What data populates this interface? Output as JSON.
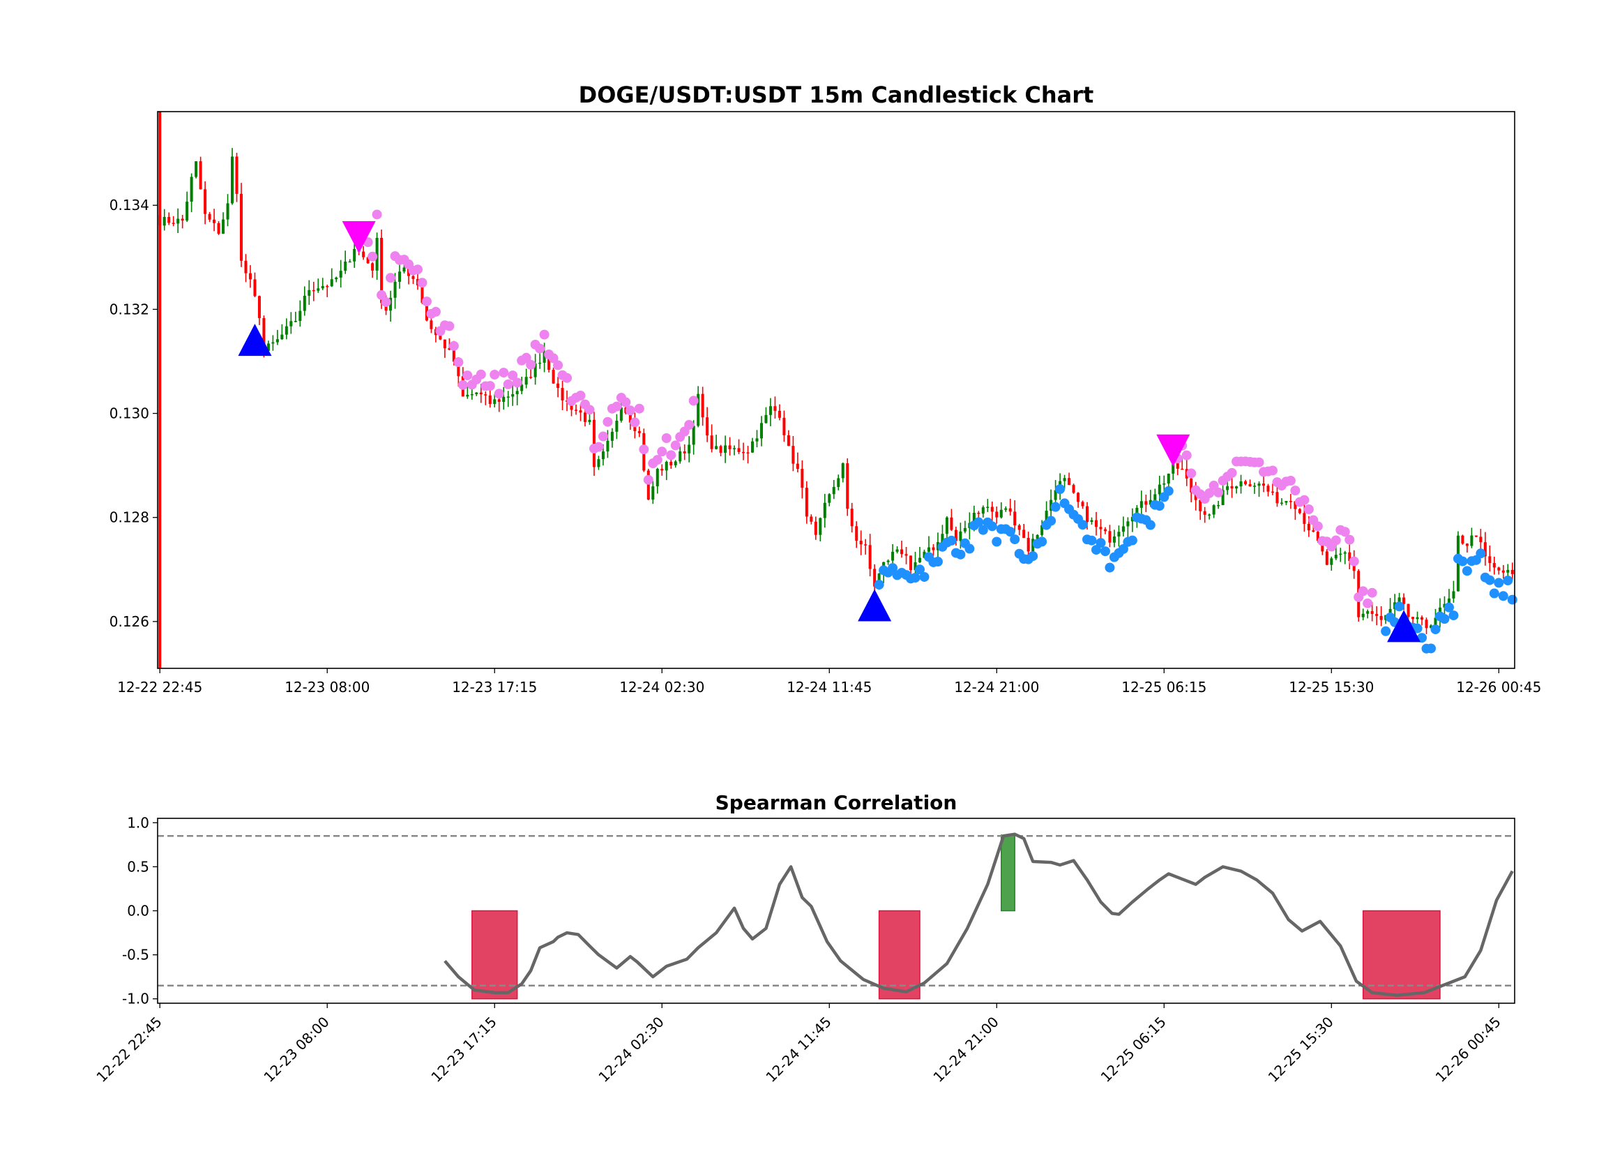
{
  "chart_data": [
    {
      "type": "candlestick",
      "title": "DOGE/USDT:USDT 15m Candlestick Chart",
      "xlabel": "",
      "ylabel": "",
      "interval": "15m",
      "bar_count": 300,
      "ylim": [
        0.1251,
        0.1358
      ],
      "y_ticks": [
        "0.126",
        "0.128",
        "0.130",
        "0.132",
        "0.134"
      ],
      "x_ticks": [
        {
          "bar": 0,
          "label": "12-22 22:45"
        },
        {
          "bar": 37,
          "label": "12-23 08:00"
        },
        {
          "bar": 74,
          "label": "12-23 17:15"
        },
        {
          "bar": 111,
          "label": "12-24 02:30"
        },
        {
          "bar": 148,
          "label": "12-24 11:45"
        },
        {
          "bar": 185,
          "label": "12-24 21:00"
        },
        {
          "bar": 222,
          "label": "12-25 06:15"
        },
        {
          "bar": 259,
          "label": "12-25 15:30"
        },
        {
          "bar": 296,
          "label": "12-26 00:45"
        }
      ],
      "close_path": [
        [
          0,
          0.1337
        ],
        [
          5,
          0.1337
        ],
        [
          7,
          0.1345
        ],
        [
          8,
          0.1348
        ],
        [
          10,
          0.1338
        ],
        [
          13,
          0.1335
        ],
        [
          15,
          0.134
        ],
        [
          16,
          0.1349
        ],
        [
          17,
          0.1343
        ],
        [
          18,
          0.1329
        ],
        [
          20,
          0.1325
        ],
        [
          22,
          0.1319
        ],
        [
          23,
          0.1312
        ],
        [
          26,
          0.1314
        ],
        [
          30,
          0.1318
        ],
        [
          33,
          0.1324
        ],
        [
          38,
          0.1325
        ],
        [
          40,
          0.1327
        ],
        [
          42,
          0.133
        ],
        [
          43,
          0.1332
        ],
        [
          45,
          0.133
        ],
        [
          47,
          0.1328
        ],
        [
          48,
          0.1333
        ],
        [
          49,
          0.1322
        ],
        [
          50,
          0.132
        ],
        [
          52,
          0.1325
        ],
        [
          54,
          0.1328
        ],
        [
          57,
          0.1325
        ],
        [
          59,
          0.1318
        ],
        [
          61,
          0.1315
        ],
        [
          63,
          0.1313
        ],
        [
          65,
          0.131
        ],
        [
          67,
          0.1303
        ],
        [
          70,
          0.1304
        ],
        [
          73,
          0.1302
        ],
        [
          76,
          0.1303
        ],
        [
          80,
          0.1305
        ],
        [
          83,
          0.1309
        ],
        [
          85,
          0.1312
        ],
        [
          86,
          0.1309
        ],
        [
          88,
          0.1304
        ],
        [
          90,
          0.1302
        ],
        [
          93,
          0.13
        ],
        [
          95,
          0.1298
        ],
        [
          96,
          0.1289
        ],
        [
          98,
          0.1292
        ],
        [
          100,
          0.1296
        ],
        [
          102,
          0.1302
        ],
        [
          104,
          0.1299
        ],
        [
          106,
          0.1296
        ],
        [
          108,
          0.1283
        ],
        [
          110,
          0.1289
        ],
        [
          114,
          0.1291
        ],
        [
          117,
          0.1294
        ],
        [
          119,
          0.1303
        ],
        [
          121,
          0.1295
        ],
        [
          123,
          0.1293
        ],
        [
          127,
          0.1293
        ],
        [
          130,
          0.1293
        ],
        [
          132,
          0.1296
        ],
        [
          135,
          0.1301
        ],
        [
          137,
          0.13
        ],
        [
          139,
          0.1293
        ],
        [
          141,
          0.1289
        ],
        [
          143,
          0.1281
        ],
        [
          145,
          0.1276
        ],
        [
          147,
          0.1282
        ],
        [
          149,
          0.1286
        ],
        [
          151,
          0.129
        ],
        [
          152,
          0.1281
        ],
        [
          154,
          0.1276
        ],
        [
          156,
          0.1274
        ],
        [
          157,
          0.127
        ],
        [
          158,
          0.1267
        ],
        [
          160,
          0.1271
        ],
        [
          163,
          0.1274
        ],
        [
          165,
          0.1273
        ],
        [
          166,
          0.1269
        ],
        [
          168,
          0.1272
        ],
        [
          172,
          0.1275
        ],
        [
          174,
          0.128
        ],
        [
          176,
          0.1275
        ],
        [
          178,
          0.1278
        ],
        [
          180,
          0.1281
        ],
        [
          183,
          0.1282
        ],
        [
          185,
          0.128
        ],
        [
          187,
          0.1282
        ],
        [
          190,
          0.1278
        ],
        [
          192,
          0.1274
        ],
        [
          194,
          0.1277
        ],
        [
          196,
          0.1281
        ],
        [
          198,
          0.1286
        ],
        [
          200,
          0.1287
        ],
        [
          202,
          0.1284
        ],
        [
          205,
          0.128
        ],
        [
          207,
          0.1278
        ],
        [
          210,
          0.1276
        ],
        [
          212,
          0.1278
        ],
        [
          215,
          0.1281
        ],
        [
          218,
          0.1283
        ],
        [
          220,
          0.1285
        ],
        [
          222,
          0.1287
        ],
        [
          224,
          0.129
        ],
        [
          226,
          0.1289
        ],
        [
          228,
          0.1285
        ],
        [
          230,
          0.1282
        ],
        [
          232,
          0.128
        ],
        [
          234,
          0.1283
        ],
        [
          236,
          0.1286
        ],
        [
          240,
          0.1287
        ],
        [
          244,
          0.1286
        ],
        [
          246,
          0.1284
        ],
        [
          248,
          0.1283
        ],
        [
          250,
          0.1284
        ],
        [
          252,
          0.1281
        ],
        [
          254,
          0.1278
        ],
        [
          256,
          0.1275
        ],
        [
          258,
          0.1271
        ],
        [
          262,
          0.1273
        ],
        [
          264,
          0.127
        ],
        [
          265,
          0.1261
        ],
        [
          267,
          0.1262
        ],
        [
          270,
          0.126
        ],
        [
          274,
          0.1264
        ],
        [
          276,
          0.1261
        ],
        [
          280,
          0.1259
        ],
        [
          284,
          0.1263
        ],
        [
          286,
          0.1265
        ],
        [
          287,
          0.1276
        ],
        [
          289,
          0.1275
        ],
        [
          291,
          0.1277
        ],
        [
          293,
          0.1272
        ],
        [
          295,
          0.127
        ],
        [
          299,
          0.1269
        ]
      ],
      "first_bar_wick": [
        0.1251,
        0.1358
      ],
      "signals": {
        "buy": [
          {
            "bar": 21,
            "price": 0.1314
          },
          {
            "bar": 158,
            "price": 0.1263
          },
          {
            "bar": 275,
            "price": 0.1259
          }
        ],
        "sell": [
          {
            "bar": 44,
            "price": 0.1334
          },
          {
            "bar": 224,
            "price": 0.1293
          }
        ]
      },
      "trail_dots": [
        {
          "color": "violet",
          "from": 46,
          "to": 118,
          "side": "above"
        },
        {
          "color": "violet",
          "from": 224,
          "to": 268,
          "side": "above"
        },
        {
          "color": "dodgerblue",
          "from": 158,
          "to": 223,
          "side": "below"
        },
        {
          "color": "dodgerblue",
          "from": 271,
          "to": 299,
          "side": "below"
        }
      ],
      "colors": {
        "up": "#008000",
        "down": "#ff0000",
        "buy": "#0000ff",
        "sell": "#ff00ff",
        "dot_short": "#ee82ee",
        "dot_long": "#1e90ff"
      }
    },
    {
      "type": "line",
      "title": "Spearman Correlation",
      "ylim": [
        -1.05,
        1.05
      ],
      "y_ticks": [
        "-1.0",
        "-0.5",
        "0.0",
        "0.5",
        "1.0"
      ],
      "thresholds": [
        0.85,
        -0.85
      ],
      "series": [
        {
          "name": "spearman",
          "color": "#666666",
          "points": [
            [
              63,
              -0.57
            ],
            [
              66,
              -0.75
            ],
            [
              69.5,
              -0.9
            ],
            [
              74,
              -0.93
            ],
            [
              77,
              -0.93
            ],
            [
              80,
              -0.83
            ],
            [
              82,
              -0.68
            ],
            [
              84,
              -0.42
            ],
            [
              87,
              -0.35
            ],
            [
              88,
              -0.3
            ],
            [
              90,
              -0.25
            ],
            [
              92.5,
              -0.27
            ],
            [
              95,
              -0.4
            ],
            [
              97,
              -0.5
            ],
            [
              101,
              -0.65
            ],
            [
              104,
              -0.52
            ],
            [
              105.5,
              -0.58
            ],
            [
              109,
              -0.75
            ],
            [
              112,
              -0.63
            ],
            [
              116.5,
              -0.55
            ],
            [
              119,
              -0.42
            ],
            [
              123,
              -0.25
            ],
            [
              127,
              0.03
            ],
            [
              129,
              -0.2
            ],
            [
              131,
              -0.32
            ],
            [
              134,
              -0.2
            ],
            [
              137,
              0.3
            ],
            [
              139.5,
              0.5
            ],
            [
              142,
              0.15
            ],
            [
              144,
              0.05
            ],
            [
              147.5,
              -0.35
            ],
            [
              150.5,
              -0.57
            ],
            [
              155.5,
              -0.78
            ],
            [
              160,
              -0.88
            ],
            [
              165,
              -0.92
            ],
            [
              169,
              -0.82
            ],
            [
              174,
              -0.6
            ],
            [
              178.5,
              -0.2
            ],
            [
              183,
              0.3
            ],
            [
              186.5,
              0.85
            ],
            [
              189,
              0.87
            ],
            [
              191,
              0.82
            ],
            [
              193,
              0.56
            ],
            [
              197,
              0.55
            ],
            [
              199,
              0.52
            ],
            [
              202,
              0.57
            ],
            [
              205,
              0.35
            ],
            [
              208,
              0.1
            ],
            [
              210.5,
              -0.03
            ],
            [
              212,
              -0.04
            ],
            [
              215,
              0.1
            ],
            [
              218.5,
              0.25
            ],
            [
              221,
              0.35
            ],
            [
              223,
              0.42
            ],
            [
              226.5,
              0.35
            ],
            [
              229,
              0.3
            ],
            [
              231,
              0.38
            ],
            [
              235,
              0.5
            ],
            [
              239,
              0.45
            ],
            [
              242.5,
              0.35
            ],
            [
              246,
              0.2
            ],
            [
              249.5,
              -0.1
            ],
            [
              252.5,
              -0.23
            ],
            [
              256.5,
              -0.12
            ],
            [
              261,
              -0.4
            ],
            [
              264.5,
              -0.8
            ],
            [
              268,
              -0.93
            ],
            [
              273.5,
              -0.96
            ],
            [
              279.5,
              -0.93
            ],
            [
              285,
              -0.82
            ],
            [
              288.5,
              -0.75
            ],
            [
              292,
              -0.45
            ],
            [
              295.5,
              0.12
            ],
            [
              299,
              0.45
            ]
          ]
        }
      ],
      "regions": [
        {
          "from": 69,
          "to": 79,
          "value": -1.0,
          "color": "#dc143c"
        },
        {
          "from": 159,
          "to": 168,
          "value": -1.0,
          "color": "#dc143c"
        },
        {
          "from": 186,
          "to": 189,
          "value": 0.86,
          "color": "#228b22"
        },
        {
          "from": 266,
          "to": 283,
          "value": -1.0,
          "color": "#dc143c"
        }
      ]
    }
  ]
}
